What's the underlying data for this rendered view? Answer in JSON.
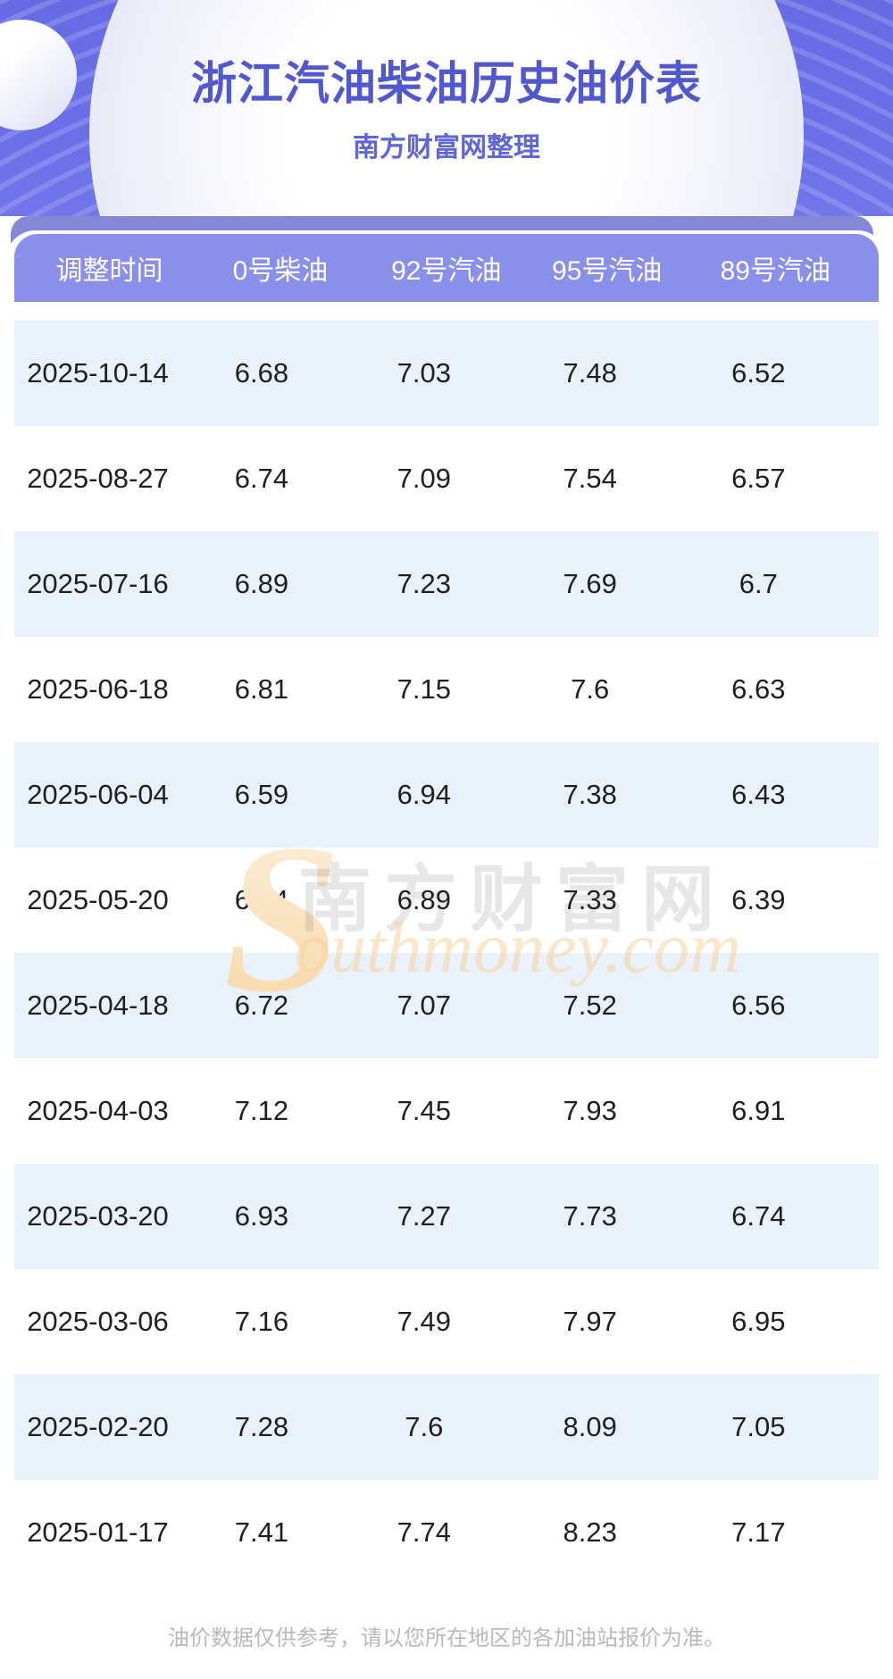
{
  "header": {
    "title": "浙江汽油柴油历史油价表",
    "subtitle": "南方财富网整理"
  },
  "table": {
    "columns": [
      "调整时间",
      "0号柴油",
      "92号汽油",
      "95号汽油",
      "89号汽油"
    ],
    "rows": [
      [
        "2025-10-14",
        "6.68",
        "7.03",
        "7.48",
        "6.52"
      ],
      [
        "2025-08-27",
        "6.74",
        "7.09",
        "7.54",
        "6.57"
      ],
      [
        "2025-07-16",
        "6.89",
        "7.23",
        "7.69",
        "6.7"
      ],
      [
        "2025-06-18",
        "6.81",
        "7.15",
        "7.6",
        "6.63"
      ],
      [
        "2025-06-04",
        "6.59",
        "6.94",
        "7.38",
        "6.43"
      ],
      [
        "2025-05-20",
        "6.54",
        "6.89",
        "7.33",
        "6.39"
      ],
      [
        "2025-04-18",
        "6.72",
        "7.07",
        "7.52",
        "6.56"
      ],
      [
        "2025-04-03",
        "7.12",
        "7.45",
        "7.93",
        "6.91"
      ],
      [
        "2025-03-20",
        "6.93",
        "7.27",
        "7.73",
        "6.74"
      ],
      [
        "2025-03-06",
        "7.16",
        "7.49",
        "7.97",
        "6.95"
      ],
      [
        "2025-02-20",
        "7.28",
        "7.6",
        "8.09",
        "7.05"
      ],
      [
        "2025-01-17",
        "7.41",
        "7.74",
        "8.23",
        "7.17"
      ]
    ]
  },
  "watermark": {
    "initial": "S",
    "script": "outhmoney.com",
    "cn": "南方财富网"
  },
  "footer": {
    "note": "油价数据仅供参考，请以您所在地区的各加油站报价为准。"
  },
  "colors": {
    "banner_purple": "#6b6fe8",
    "back_band_purple": "#8588d5",
    "table_header_purple": "#8a90e9",
    "row_alt_blue": "#e9f1fb",
    "title_text": "#5157cd",
    "subtitle_text": "#5e66d8",
    "watermark_orange": "#f8d8a6",
    "footer_gray": "#b9b9b9"
  }
}
